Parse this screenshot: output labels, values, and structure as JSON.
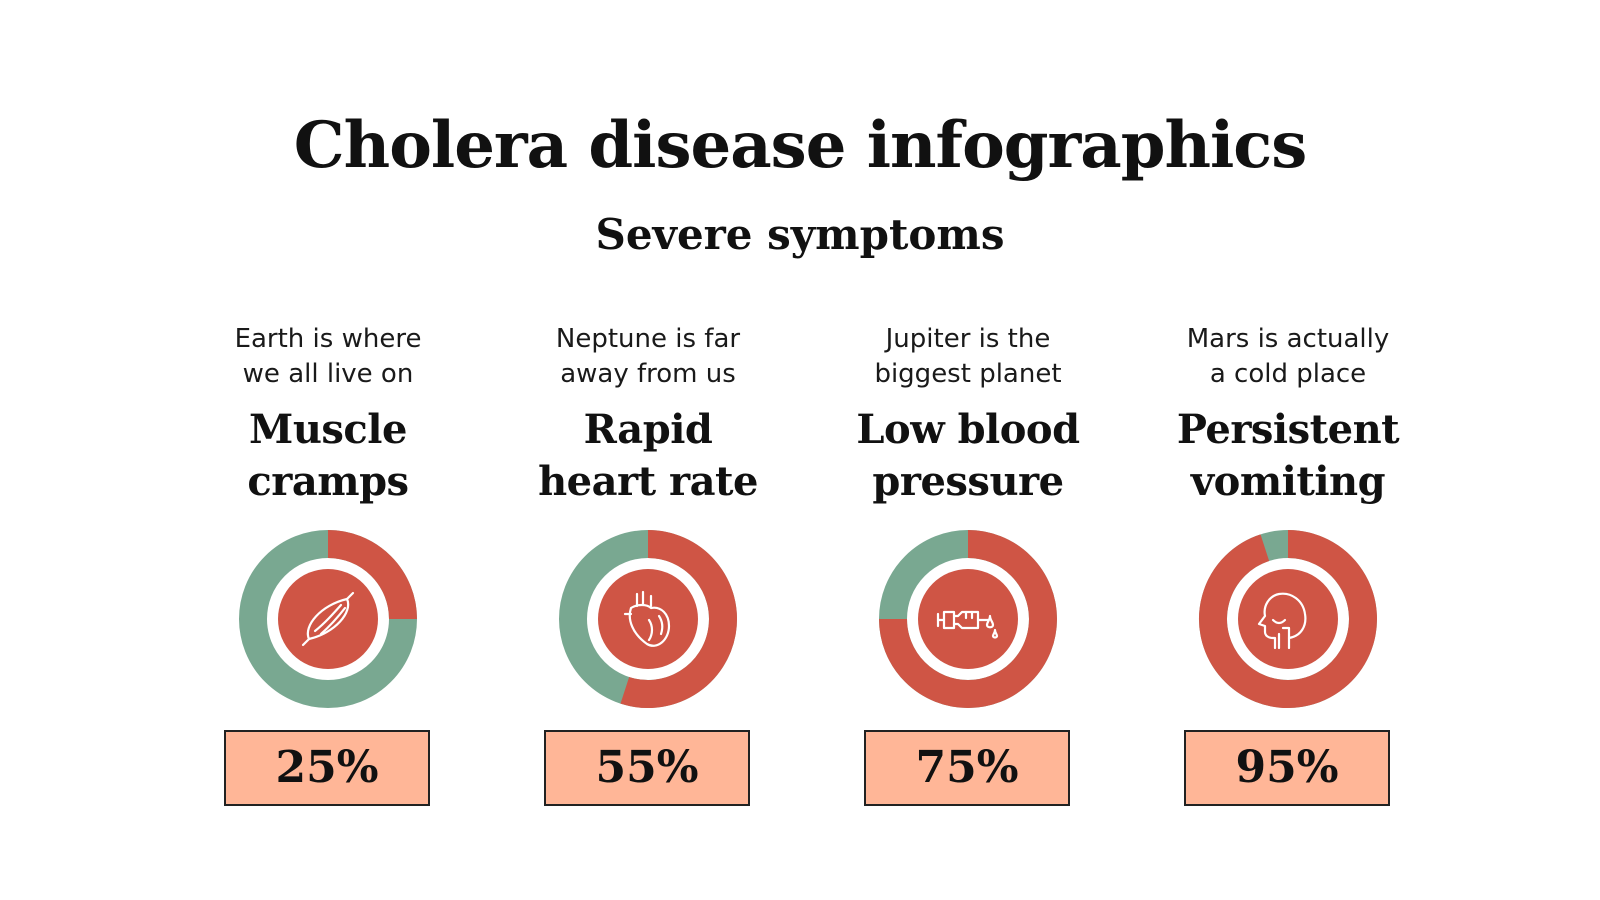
{
  "title": "Cholera disease infographics",
  "subtitle": "Severe symptoms",
  "colors": {
    "accent": "#cf5545",
    "remainder": "#79a891",
    "box": "#ffb697",
    "icon_stroke": "#ffffff"
  },
  "chart_data": {
    "type": "pie",
    "title": "Cholera disease infographics",
    "subtitle": "Severe symptoms",
    "categories": [
      "Muscle cramps",
      "Rapid heart rate",
      "Low blood pressure",
      "Persistent vomiting"
    ],
    "values": [
      25,
      55,
      75,
      95
    ],
    "unit": "%"
  },
  "items": [
    {
      "desc": [
        "Earth is where",
        "we all live on"
      ],
      "name": [
        "Muscle",
        "cramps"
      ],
      "value": 25,
      "label": "25%",
      "icon": "muscle-icon"
    },
    {
      "desc": [
        "Neptune is far",
        "away from us"
      ],
      "name": [
        "Rapid",
        "heart rate"
      ],
      "value": 55,
      "label": "55%",
      "icon": "heart-icon"
    },
    {
      "desc": [
        "Jupiter is the",
        "biggest planet"
      ],
      "name": [
        "Low blood",
        "pressure"
      ],
      "value": 75,
      "label": "75%",
      "icon": "iv-drip-icon"
    },
    {
      "desc": [
        "Mars is actually",
        "a cold place"
      ],
      "name": [
        "Persistent",
        "vomiting"
      ],
      "value": 95,
      "label": "95%",
      "icon": "head-profile-icon"
    }
  ]
}
